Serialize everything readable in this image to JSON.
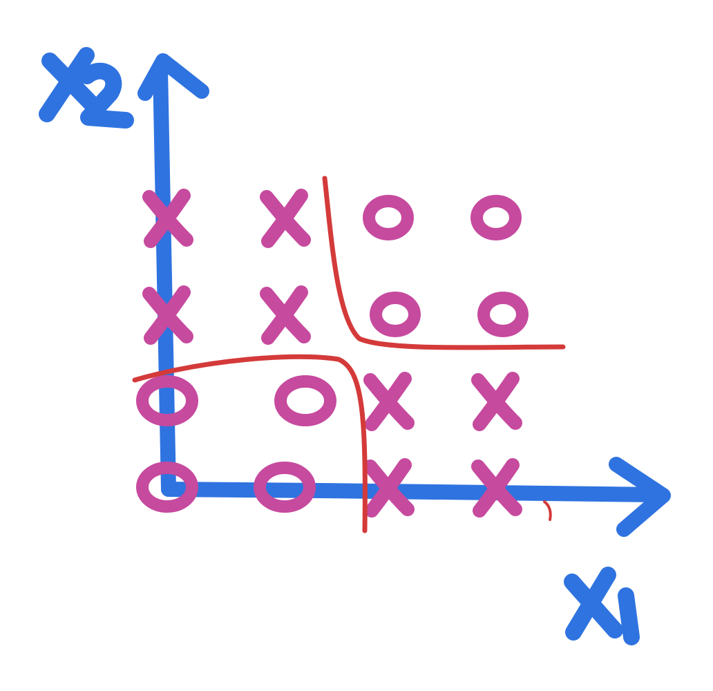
{
  "axes": {
    "x_label": "X1",
    "y_label": "X2",
    "color": "#2f73e0"
  },
  "marker_color": "#c64a9e",
  "boundary_color": "#d43a3a",
  "grid": {
    "rows": [
      [
        "X",
        "X",
        "O",
        "O"
      ],
      [
        "X",
        "X",
        "O",
        "O"
      ],
      [
        "O",
        "O",
        "X",
        "X"
      ],
      [
        "O",
        "O",
        "X",
        "X"
      ]
    ]
  }
}
